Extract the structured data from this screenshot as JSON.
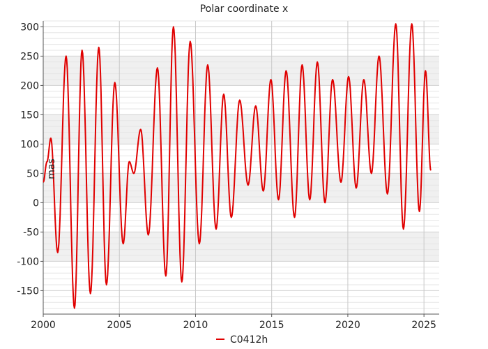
{
  "chart_data": {
    "type": "line",
    "title": "Polar coordinate x",
    "ylabel": "mas",
    "xlabel": "",
    "xlim": [
      2000,
      2026
    ],
    "ylim": [
      -190,
      310
    ],
    "x_ticks": [
      2000,
      2005,
      2010,
      2015,
      2020,
      2025
    ],
    "y_ticks": [
      -150,
      -100,
      -50,
      0,
      50,
      100,
      150,
      200,
      250,
      300
    ],
    "grid": true,
    "banded_background": true,
    "legend": {
      "placement": "bottom-center"
    },
    "series": [
      {
        "name": "C0412h",
        "color": "#e00000",
        "x": [
          2000.0,
          2000.25,
          2000.5,
          2000.95,
          2001.5,
          2002.05,
          2002.55,
          2003.1,
          2003.65,
          2004.15,
          2004.7,
          2005.25,
          2005.65,
          2005.95,
          2006.4,
          2006.9,
          2007.5,
          2008.05,
          2008.55,
          2009.1,
          2009.65,
          2010.25,
          2010.8,
          2011.35,
          2011.85,
          2012.35,
          2012.9,
          2013.45,
          2013.95,
          2014.45,
          2014.95,
          2015.45,
          2015.95,
          2016.5,
          2017.0,
          2017.5,
          2018.0,
          2018.5,
          2019.0,
          2019.55,
          2020.05,
          2020.55,
          2021.05,
          2021.55,
          2022.05,
          2022.6,
          2023.15,
          2023.65,
          2024.2,
          2024.7,
          2025.1,
          2025.45
        ],
        "y": [
          35,
          70,
          110,
          -85,
          250,
          -180,
          260,
          -155,
          265,
          -140,
          205,
          -70,
          70,
          50,
          125,
          -55,
          230,
          -125,
          300,
          -135,
          275,
          -70,
          235,
          -45,
          185,
          -25,
          175,
          30,
          165,
          20,
          210,
          5,
          225,
          -25,
          235,
          5,
          240,
          0,
          210,
          35,
          215,
          25,
          210,
          50,
          250,
          15,
          305,
          -45,
          305,
          -15,
          225,
          55
        ]
      }
    ],
    "series_values_note_removed": true
  }
}
